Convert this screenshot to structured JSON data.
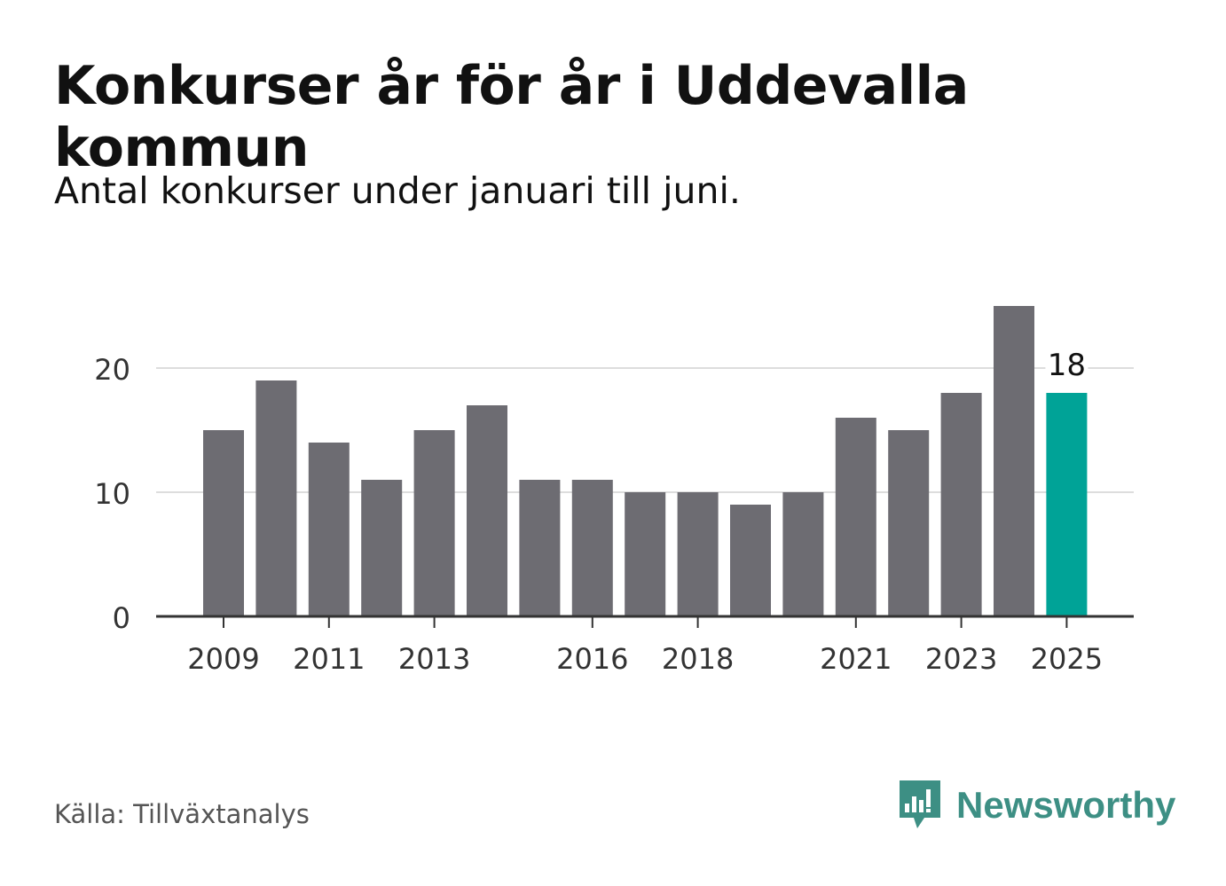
{
  "header": {
    "title": "Konkurser år för år i Uddevalla kommun",
    "subtitle": "Antal konkurser under januari till juni."
  },
  "footer": {
    "source": "Källa: Tillväxtanalys",
    "brand": "Newsworthy",
    "brand_icon": "newsworthy-logo-icon"
  },
  "colors": {
    "bar": "#6d6c72",
    "highlight": "#00a397",
    "brand": "#3d8f84",
    "grid": "#dddddd",
    "axis": "#333333"
  },
  "chart_data": {
    "type": "bar",
    "categories": [
      "2009",
      "2010",
      "2011",
      "2012",
      "2013",
      "2014",
      "2015",
      "2016",
      "2017",
      "2018",
      "2019",
      "2020",
      "2021",
      "2022",
      "2023",
      "2024",
      "2025"
    ],
    "values": [
      15,
      19,
      14,
      11,
      15,
      17,
      11,
      11,
      10,
      10,
      9,
      10,
      16,
      15,
      18,
      25,
      18
    ],
    "x_tick_labels": [
      "2009",
      "2011",
      "2013",
      "2016",
      "2018",
      "2021",
      "2023",
      "2025"
    ],
    "y_ticks": [
      0,
      10,
      20
    ],
    "ylim": [
      0,
      25
    ],
    "highlight_category": "2025",
    "data_labels": [
      {
        "category": "2025",
        "text": "18"
      }
    ],
    "grid": true,
    "legend": "none",
    "xlabel": "",
    "ylabel": ""
  }
}
